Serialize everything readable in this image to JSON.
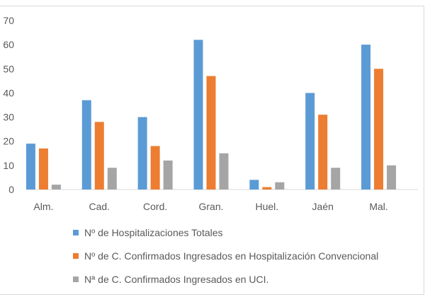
{
  "chart_data": {
    "type": "bar",
    "categories": [
      "Alm.",
      "Cad.",
      "Cord.",
      "Gran.",
      "Huel.",
      "Jaén",
      "Mal."
    ],
    "series": [
      {
        "name": "Nº de Hospitalizaciones Totales",
        "color": "#5b9bd5",
        "values": [
          19,
          37,
          30,
          62,
          4,
          40,
          60
        ]
      },
      {
        "name": "Nº de C. Confirmados Ingresados en Hospitalización Convencional",
        "color": "#ed7d31",
        "values": [
          17,
          28,
          18,
          47,
          1,
          31,
          50
        ]
      },
      {
        "name": "Nª de C. Confirmados Ingresados en UCI.",
        "color": "#a5a5a5",
        "values": [
          2,
          9,
          12,
          15,
          3,
          9,
          10
        ]
      }
    ],
    "yticks": [
      "0",
      "10",
      "20",
      "30",
      "40",
      "50",
      "60",
      "70"
    ],
    "ylim": [
      0,
      70
    ],
    "title": "",
    "xlabel": "",
    "ylabel": "",
    "legend_position": "bottom"
  }
}
